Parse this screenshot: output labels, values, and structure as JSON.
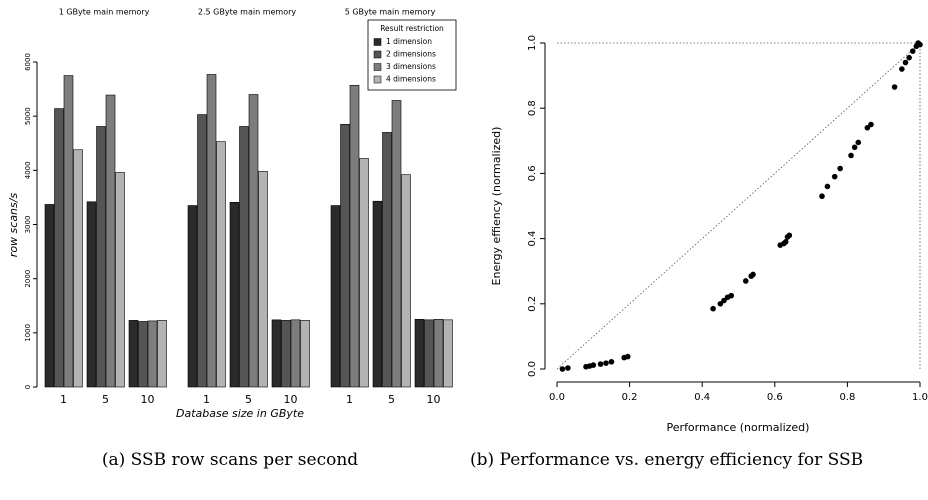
{
  "chart_data": [
    {
      "type": "bar",
      "ylabel": "row scans/s",
      "xlabel": "Database size in GByte",
      "ylim": [
        0,
        6000
      ],
      "yticks": [
        0,
        1000,
        2000,
        3000,
        4000,
        5000,
        6000
      ],
      "legend_title": "Result restriction",
      "legend": "top-right",
      "series": [
        {
          "name": "1 dimension",
          "color": "#2b2b2b"
        },
        {
          "name": "2 dimensions",
          "color": "#555555"
        },
        {
          "name": "3 dimensions",
          "color": "#7d7d7d"
        },
        {
          "name": "4 dimensions",
          "color": "#b3b3b3"
        }
      ],
      "panels": [
        {
          "title": "1 GByte main memory",
          "categories": [
            "1",
            "5",
            "10"
          ],
          "values": [
            [
              3370,
              3420,
              1230
            ],
            [
              5140,
              4810,
              1210
            ],
            [
              5750,
              5390,
              1220
            ],
            [
              4380,
              3960,
              1230
            ]
          ]
        },
        {
          "title": "2.5 GByte main memory",
          "categories": [
            "1",
            "5",
            "10"
          ],
          "values": [
            [
              3350,
              3410,
              1240
            ],
            [
              5030,
              4810,
              1230
            ],
            [
              5770,
              5400,
              1240
            ],
            [
              4530,
              3980,
              1230
            ]
          ]
        },
        {
          "title": "5 GByte main memory",
          "categories": [
            "1",
            "5",
            "10"
          ],
          "values": [
            [
              3350,
              3430,
              1250
            ],
            [
              4850,
              4700,
              1240
            ],
            [
              5570,
              5290,
              1250
            ],
            [
              4220,
              3920,
              1240
            ]
          ]
        }
      ],
      "caption": "(a) SSB row scans per second"
    },
    {
      "type": "scatter",
      "xlabel": "Performance (normalized)",
      "ylabel": "Energy effiency (normalized)",
      "xlim": [
        0,
        1
      ],
      "ylim": [
        0,
        1
      ],
      "xticks": [
        {
          "value": 0,
          "label": "0.0"
        },
        0.2,
        0.4,
        0.6,
        0.8,
        {
          "value": 1,
          "label": "1.0"
        }
      ],
      "yticks": [
        {
          "value": 0,
          "label": "0.0"
        },
        0.2,
        0.4,
        0.6,
        0.8,
        {
          "value": 1,
          "label": "1.0"
        }
      ],
      "color": "#000000",
      "x": [
        0.015,
        0.03,
        0.08,
        0.09,
        0.1,
        0.12,
        0.135,
        0.15,
        0.185,
        0.195,
        0.43,
        0.45,
        0.46,
        0.47,
        0.48,
        0.52,
        0.535,
        0.54,
        0.615,
        0.625,
        0.63,
        0.635,
        0.64,
        0.73,
        0.745,
        0.765,
        0.78,
        0.81,
        0.82,
        0.83,
        0.855,
        0.865,
        0.93,
        0.95,
        0.96,
        0.97,
        0.98,
        0.99,
        0.995,
        1.0
      ],
      "y": [
        0.0,
        0.003,
        0.007,
        0.009,
        0.012,
        0.015,
        0.018,
        0.022,
        0.035,
        0.038,
        0.185,
        0.2,
        0.21,
        0.22,
        0.225,
        0.27,
        0.285,
        0.29,
        0.38,
        0.385,
        0.39,
        0.405,
        0.41,
        0.53,
        0.56,
        0.59,
        0.615,
        0.655,
        0.68,
        0.695,
        0.74,
        0.75,
        0.865,
        0.92,
        0.94,
        0.955,
        0.975,
        0.99,
        1.0,
        0.995
      ],
      "caption": "(b) Performance vs. energy efficiency for SSB"
    }
  ]
}
